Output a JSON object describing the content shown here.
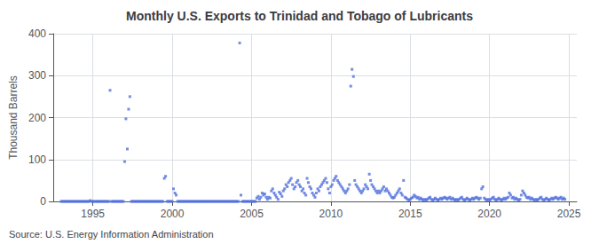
{
  "chart_data": {
    "type": "scatter",
    "title": "Monthly U.S. Exports to Trinidad and Tobago of Lubricants",
    "ylabel": "Thousand Barrels",
    "source": "Source: U.S. Energy Information Administration",
    "marker": "square",
    "grid": true,
    "xlim": [
      1992.5,
      2025.5
    ],
    "ylim": [
      0,
      400
    ],
    "xticks": [
      1995,
      2000,
      2005,
      2010,
      2015,
      2020,
      2025
    ],
    "yticks": [
      0,
      100,
      200,
      300,
      400
    ],
    "x": [
      1993.0,
      1993.08,
      1993.17,
      1993.25,
      1993.33,
      1993.42,
      1993.5,
      1993.58,
      1993.67,
      1993.75,
      1993.83,
      1993.92,
      1994.0,
      1994.08,
      1994.17,
      1994.25,
      1994.33,
      1994.42,
      1994.5,
      1994.58,
      1994.67,
      1994.75,
      1994.83,
      1994.92,
      1995.0,
      1995.08,
      1995.17,
      1995.25,
      1995.33,
      1995.42,
      1995.5,
      1995.58,
      1995.67,
      1995.75,
      1995.83,
      1995.92,
      1996.0,
      1996.08,
      1996.17,
      1996.25,
      1996.33,
      1996.42,
      1996.5,
      1996.58,
      1996.67,
      1996.75,
      1996.83,
      1996.92,
      1997.0,
      1997.08,
      1997.17,
      1997.25,
      1997.33,
      1997.42,
      1997.5,
      1997.58,
      1997.67,
      1997.75,
      1997.83,
      1997.92,
      1998.0,
      1998.08,
      1998.17,
      1998.25,
      1998.33,
      1998.42,
      1998.5,
      1998.58,
      1998.67,
      1998.75,
      1998.83,
      1998.92,
      1999.0,
      1999.08,
      1999.17,
      1999.25,
      1999.33,
      1999.42,
      1999.5,
      1999.58,
      1999.67,
      1999.75,
      1999.83,
      1999.92,
      2000.0,
      2000.08,
      2000.17,
      2000.25,
      2000.33,
      2000.42,
      2000.5,
      2000.58,
      2000.67,
      2000.75,
      2000.83,
      2000.92,
      2001.0,
      2001.08,
      2001.17,
      2001.25,
      2001.33,
      2001.42,
      2001.5,
      2001.58,
      2001.67,
      2001.75,
      2001.83,
      2001.92,
      2002.0,
      2002.08,
      2002.17,
      2002.25,
      2002.33,
      2002.42,
      2002.5,
      2002.58,
      2002.67,
      2002.75,
      2002.83,
      2002.92,
      2003.0,
      2003.08,
      2003.17,
      2003.25,
      2003.33,
      2003.42,
      2003.5,
      2003.58,
      2003.67,
      2003.75,
      2003.83,
      2003.92,
      2004.0,
      2004.08,
      2004.17,
      2004.25,
      2004.33,
      2004.42,
      2004.5,
      2004.58,
      2004.67,
      2004.75,
      2004.83,
      2004.92,
      2005.0,
      2005.08,
      2005.17,
      2005.25,
      2005.33,
      2005.42,
      2005.5,
      2005.58,
      2005.67,
      2005.75,
      2005.83,
      2005.92,
      2006.0,
      2006.08,
      2006.17,
      2006.25,
      2006.33,
      2006.42,
      2006.5,
      2006.58,
      2006.67,
      2006.75,
      2006.83,
      2006.92,
      2007.0,
      2007.08,
      2007.17,
      2007.25,
      2007.33,
      2007.42,
      2007.5,
      2007.58,
      2007.67,
      2007.75,
      2007.83,
      2007.92,
      2008.0,
      2008.08,
      2008.17,
      2008.25,
      2008.33,
      2008.42,
      2008.5,
      2008.58,
      2008.67,
      2008.75,
      2008.83,
      2008.92,
      2009.0,
      2009.08,
      2009.17,
      2009.25,
      2009.33,
      2009.42,
      2009.5,
      2009.58,
      2009.67,
      2009.75,
      2009.83,
      2009.92,
      2010.0,
      2010.08,
      2010.17,
      2010.25,
      2010.33,
      2010.42,
      2010.5,
      2010.58,
      2010.67,
      2010.75,
      2010.83,
      2010.92,
      2011.0,
      2011.08,
      2011.17,
      2011.25,
      2011.33,
      2011.42,
      2011.5,
      2011.58,
      2011.67,
      2011.75,
      2011.83,
      2011.92,
      2012.0,
      2012.08,
      2012.17,
      2012.25,
      2012.33,
      2012.42,
      2012.5,
      2012.58,
      2012.67,
      2012.75,
      2012.83,
      2012.92,
      2013.0,
      2013.08,
      2013.17,
      2013.25,
      2013.33,
      2013.42,
      2013.5,
      2013.58,
      2013.67,
      2013.75,
      2013.83,
      2013.92,
      2014.0,
      2014.08,
      2014.17,
      2014.25,
      2014.33,
      2014.42,
      2014.5,
      2014.58,
      2014.67,
      2014.75,
      2014.83,
      2014.92,
      2015.0,
      2015.08,
      2015.17,
      2015.25,
      2015.33,
      2015.42,
      2015.5,
      2015.58,
      2015.67,
      2015.75,
      2015.83,
      2015.92,
      2016.0,
      2016.08,
      2016.17,
      2016.25,
      2016.33,
      2016.42,
      2016.5,
      2016.58,
      2016.67,
      2016.75,
      2016.83,
      2016.92,
      2017.0,
      2017.08,
      2017.17,
      2017.25,
      2017.33,
      2017.42,
      2017.5,
      2017.58,
      2017.67,
      2017.75,
      2017.83,
      2017.92,
      2018.0,
      2018.08,
      2018.17,
      2018.25,
      2018.33,
      2018.42,
      2018.5,
      2018.58,
      2018.67,
      2018.75,
      2018.83,
      2018.92,
      2019.0,
      2019.08,
      2019.17,
      2019.25,
      2019.33,
      2019.42,
      2019.5,
      2019.58,
      2019.67,
      2019.75,
      2019.83,
      2019.92,
      2020.0,
      2020.08,
      2020.17,
      2020.25,
      2020.33,
      2020.42,
      2020.5,
      2020.58,
      2020.67,
      2020.75,
      2020.83,
      2020.92,
      2021.0,
      2021.08,
      2021.17,
      2021.25,
      2021.33,
      2021.42,
      2021.5,
      2021.58,
      2021.67,
      2021.75,
      2021.83,
      2021.92,
      2022.0,
      2022.08,
      2022.17,
      2022.25,
      2022.33,
      2022.42,
      2022.5,
      2022.58,
      2022.67,
      2022.75,
      2022.83,
      2022.92,
      2023.0,
      2023.08,
      2023.17,
      2023.25,
      2023.33,
      2023.42,
      2023.5,
      2023.58,
      2023.67,
      2023.75,
      2023.83,
      2023.92,
      2024.0,
      2024.08,
      2024.17,
      2024.25,
      2024.33,
      2024.42,
      2024.5,
      2024.58,
      2024.67,
      2024.75
    ],
    "values": [
      0,
      0,
      0,
      0,
      0,
      0,
      0,
      0,
      0,
      0,
      0,
      0,
      0,
      0,
      0,
      0,
      0,
      0,
      0,
      0,
      0,
      0,
      2,
      0,
      0,
      0,
      0,
      0,
      0,
      0,
      0,
      0,
      0,
      0,
      0,
      0,
      0,
      265,
      0,
      0,
      0,
      0,
      0,
      0,
      0,
      0,
      0,
      0,
      95,
      197,
      125,
      220,
      250,
      0,
      0,
      0,
      0,
      0,
      0,
      0,
      0,
      0,
      0,
      0,
      0,
      0,
      0,
      0,
      0,
      0,
      0,
      0,
      0,
      0,
      0,
      0,
      0,
      0,
      55,
      60,
      0,
      0,
      0,
      0,
      0,
      30,
      20,
      15,
      0,
      0,
      0,
      0,
      0,
      0,
      0,
      0,
      0,
      0,
      0,
      0,
      0,
      0,
      0,
      0,
      0,
      0,
      0,
      0,
      0,
      0,
      0,
      0,
      0,
      0,
      0,
      0,
      0,
      0,
      0,
      0,
      0,
      0,
      0,
      0,
      0,
      0,
      0,
      0,
      0,
      0,
      0,
      0,
      0,
      0,
      0,
      378,
      15,
      0,
      0,
      0,
      0,
      0,
      0,
      0,
      0,
      0,
      0,
      0,
      8,
      12,
      5,
      10,
      20,
      15,
      18,
      10,
      5,
      10,
      8,
      25,
      30,
      20,
      15,
      10,
      5,
      22,
      18,
      12,
      25,
      30,
      40,
      35,
      45,
      50,
      55,
      40,
      30,
      35,
      45,
      50,
      40,
      35,
      25,
      30,
      20,
      15,
      55,
      45,
      35,
      30,
      20,
      15,
      10,
      20,
      30,
      25,
      35,
      40,
      45,
      50,
      55,
      45,
      30,
      20,
      35,
      40,
      50,
      55,
      60,
      50,
      45,
      40,
      35,
      30,
      25,
      20,
      25,
      30,
      40,
      275,
      315,
      298,
      50,
      40,
      35,
      30,
      25,
      20,
      25,
      30,
      40,
      35,
      30,
      65,
      50,
      40,
      35,
      30,
      25,
      20,
      25,
      20,
      25,
      30,
      35,
      25,
      30,
      25,
      20,
      15,
      10,
      8,
      10,
      15,
      20,
      25,
      30,
      20,
      15,
      50,
      10,
      8,
      5,
      3,
      5,
      8,
      10,
      15,
      12,
      8,
      10,
      5,
      8,
      5,
      3,
      5,
      3,
      5,
      8,
      10,
      5,
      3,
      5,
      8,
      5,
      3,
      5,
      8,
      5,
      8,
      10,
      8,
      5,
      8,
      10,
      5,
      8,
      5,
      3,
      5,
      3,
      5,
      8,
      10,
      5,
      3,
      5,
      8,
      5,
      3,
      5,
      8,
      5,
      8,
      10,
      8,
      5,
      8,
      30,
      35,
      8,
      5,
      3,
      5,
      3,
      5,
      8,
      10,
      5,
      3,
      5,
      8,
      5,
      3,
      5,
      8,
      5,
      8,
      10,
      20,
      15,
      8,
      10,
      5,
      8,
      5,
      3,
      5,
      15,
      25,
      20,
      15,
      10,
      8,
      10,
      5,
      8,
      5,
      3,
      5,
      3,
      5,
      8,
      10,
      5,
      3,
      5,
      8,
      5,
      3,
      5,
      8,
      5,
      8,
      10,
      8,
      5,
      8,
      10,
      5,
      8,
      5
    ]
  }
}
